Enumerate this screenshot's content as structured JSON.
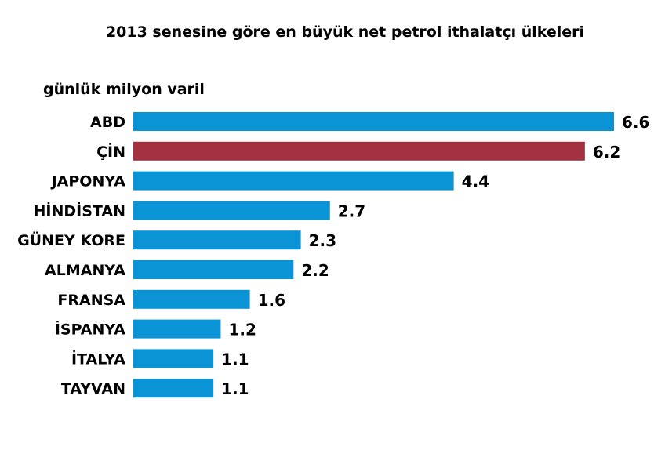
{
  "chart_data": {
    "type": "bar",
    "orientation": "horizontal",
    "title": "2013 senesine göre en büyük net petrol ithalatçı ülkeleri",
    "unit_label": "günlük milyon varil",
    "categories": [
      "ABD",
      "ÇİN",
      "JAPONYA",
      "HİNDİSTAN",
      "GÜNEY KORE",
      "ALMANYA",
      "FRANSA",
      "İSPANYA",
      "İTALYA",
      "TAYVAN"
    ],
    "values": [
      6.6,
      6.2,
      4.4,
      2.7,
      2.3,
      2.2,
      1.6,
      1.2,
      1.1,
      1.1
    ],
    "value_labels": [
      "6.6",
      "6.2",
      "4.4",
      "2.7",
      "2.3",
      "2.2",
      "1.6",
      "1.2",
      "1.1",
      "1.1"
    ],
    "bar_colors": [
      "#0a94d6",
      "#a3313f",
      "#0a94d6",
      "#0a94d6",
      "#0a94d6",
      "#0a94d6",
      "#0a94d6",
      "#0a94d6",
      "#0a94d6",
      "#0a94d6"
    ],
    "xlim": [
      0,
      6.6
    ],
    "grid": false,
    "legend": "none"
  }
}
